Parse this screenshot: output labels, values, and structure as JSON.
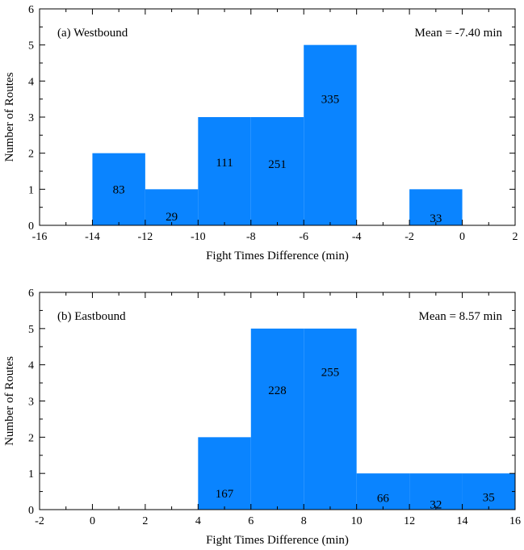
{
  "chart_data": [
    {
      "type": "bar",
      "panel_label": "(a) Westbound",
      "mean_label": "Mean = -7.40 min",
      "xlabel": "Fight Times Difference (min)",
      "ylabel": "Number of Routes",
      "xlim": [
        -16,
        2
      ],
      "ylim": [
        0,
        6
      ],
      "xticks": [
        "-16",
        "-14",
        "-12",
        "-10",
        "-8",
        "-6",
        "-4",
        "-2",
        "0",
        "2"
      ],
      "yticks": [
        "0",
        "1",
        "2",
        "3",
        "4",
        "5",
        "6"
      ],
      "color": "#0a84ff",
      "bins": [
        {
          "x0": -14,
          "x1": -12,
          "count": 2
        },
        {
          "x0": -12,
          "x1": -10,
          "count": 1
        },
        {
          "x0": -10,
          "x1": -8,
          "count": 3
        },
        {
          "x0": -8,
          "x1": -6,
          "count": 3
        },
        {
          "x0": -6,
          "x1": -4,
          "count": 5
        },
        {
          "x0": -2,
          "x1": 0,
          "count": 1
        }
      ],
      "annotations": [
        {
          "text": "83",
          "x": -13,
          "y": 1.0
        },
        {
          "text": "29",
          "x": -11,
          "y": 0.25
        },
        {
          "text": "111",
          "x": -9,
          "y": 1.75
        },
        {
          "text": "251",
          "x": -7,
          "y": 1.7
        },
        {
          "text": "335",
          "x": -5,
          "y": 3.5
        },
        {
          "text": "33",
          "x": -1,
          "y": 0.2
        }
      ]
    },
    {
      "type": "bar",
      "panel_label": "(b) Eastbound",
      "mean_label": "Mean = 8.57 min",
      "xlabel": "Fight Times Difference (min)",
      "ylabel": "Number of Routes",
      "xlim": [
        -2,
        16
      ],
      "ylim": [
        0,
        6
      ],
      "xticks": [
        "-2",
        "0",
        "2",
        "4",
        "6",
        "8",
        "10",
        "12",
        "14",
        "16"
      ],
      "yticks": [
        "0",
        "1",
        "2",
        "3",
        "4",
        "5",
        "6"
      ],
      "color": "#0a84ff",
      "bins": [
        {
          "x0": 4,
          "x1": 6,
          "count": 2
        },
        {
          "x0": 6,
          "x1": 8,
          "count": 5
        },
        {
          "x0": 8,
          "x1": 10,
          "count": 5
        },
        {
          "x0": 10,
          "x1": 12,
          "count": 1
        },
        {
          "x0": 12,
          "x1": 14,
          "count": 1
        },
        {
          "x0": 14,
          "x1": 16,
          "count": 1
        }
      ],
      "annotations": [
        {
          "text": "167",
          "x": 5,
          "y": 0.45
        },
        {
          "text": "228",
          "x": 7,
          "y": 3.3
        },
        {
          "text": "255",
          "x": 9,
          "y": 3.8
        },
        {
          "text": "66",
          "x": 11,
          "y": 0.32
        },
        {
          "text": "32",
          "x": 13,
          "y": 0.15
        },
        {
          "text": "35",
          "x": 15,
          "y": 0.35
        }
      ]
    }
  ]
}
